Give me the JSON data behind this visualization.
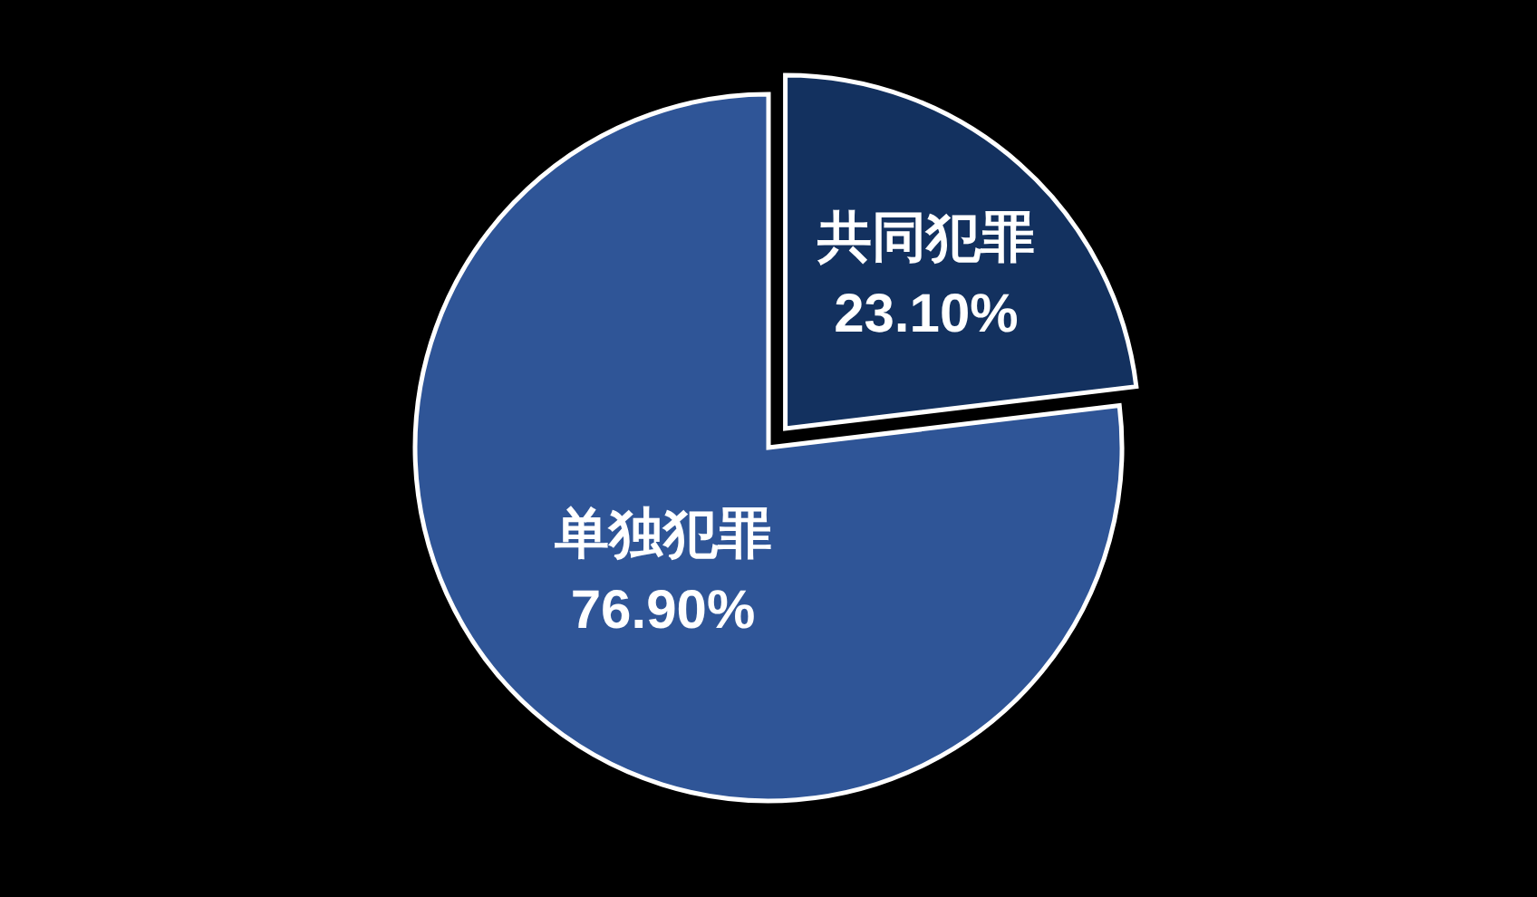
{
  "chart_data": {
    "type": "pie",
    "categories": [
      "共同犯罪",
      "单独犯罪"
    ],
    "values": [
      23.1,
      76.9
    ],
    "colors": [
      "#13315f",
      "#2f5597"
    ],
    "value_labels": [
      "23.10%",
      "76.90%"
    ]
  }
}
